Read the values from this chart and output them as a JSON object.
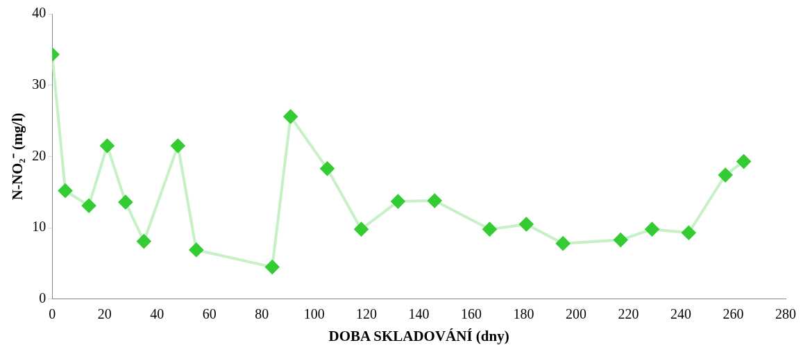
{
  "chart_data": {
    "type": "line",
    "xlabel": "DOBA SKLADOVÁNÍ (dny)",
    "ylabel": "N-NO₂⁻ (mg/l)",
    "x": [
      0,
      5,
      14,
      21,
      28,
      35,
      48,
      55,
      84,
      91,
      105,
      118,
      132,
      146,
      167,
      181,
      195,
      217,
      229,
      243,
      257,
      264
    ],
    "series": [
      {
        "color": "#33cc33",
        "values": [
          34.3,
          15.2,
          13.1,
          21.5,
          13.6,
          8.1,
          21.5,
          6.9,
          4.5,
          25.6,
          18.3,
          9.8,
          13.7,
          13.8,
          9.8,
          10.5,
          7.8,
          8.3,
          9.8,
          9.3,
          17.4,
          19.3
        ]
      }
    ],
    "xlim": [
      0,
      280
    ],
    "xticks": [
      0,
      20,
      40,
      60,
      80,
      100,
      120,
      140,
      160,
      180,
      200,
      220,
      240,
      260,
      280
    ],
    "ylim": [
      0,
      40
    ],
    "yticks": [
      0,
      10,
      20,
      30,
      40
    ],
    "grid": false,
    "legend": false,
    "marker": "diamond",
    "line_style": "solid"
  }
}
